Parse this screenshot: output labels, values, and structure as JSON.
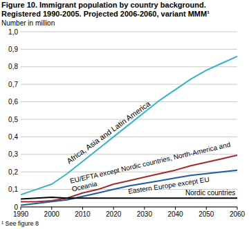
{
  "chart_data": {
    "type": "line",
    "title": "Figure 10. Immigrant population by country background.",
    "subtitle": "Registered 1990-2005. Projected 2006-2060, variant MMM¹",
    "y_label": "Number in million",
    "annotations": [
      "¹ See figure 8"
    ],
    "x": [
      1990,
      1995,
      2000,
      2005,
      2010,
      2015,
      2020,
      2025,
      2030,
      2035,
      2040,
      2045,
      2050,
      2055,
      2060
    ],
    "series": [
      {
        "name": "Africa, Asia and Latin America",
        "color": "#35b4c4",
        "values": [
          0.07,
          0.1,
          0.13,
          0.19,
          0.26,
          0.33,
          0.4,
          0.47,
          0.54,
          0.61,
          0.67,
          0.73,
          0.78,
          0.82,
          0.86
        ]
      },
      {
        "name": "EU/EFTA except Nordic countries, North-America and Oceania",
        "color": "#a3282b",
        "values": [
          0.03,
          0.03,
          0.035,
          0.05,
          0.08,
          0.1,
          0.13,
          0.15,
          0.17,
          0.19,
          0.21,
          0.235,
          0.255,
          0.275,
          0.295
        ]
      },
      {
        "name": "Eastern Europe except EU",
        "color": "#1f5aa6",
        "values": [
          0.01,
          0.02,
          0.03,
          0.04,
          0.06,
          0.08,
          0.1,
          0.12,
          0.135,
          0.15,
          0.165,
          0.18,
          0.19,
          0.2,
          0.21
        ]
      },
      {
        "name": "Nordic countries",
        "color": "#000000",
        "values": [
          0.045,
          0.05,
          0.055,
          0.05,
          0.05,
          0.05,
          0.05,
          0.05,
          0.05,
          0.05,
          0.05,
          0.05,
          0.05,
          0.05,
          0.05
        ]
      }
    ],
    "xlim": [
      1990,
      2060
    ],
    "xticks": [
      1990,
      2000,
      2010,
      2020,
      2030,
      2040,
      2050,
      2060
    ],
    "ylim": [
      0,
      1.0
    ],
    "yticks": [
      0,
      {
        "value": 0.1,
        "label": "0,1"
      },
      {
        "value": 0.2,
        "label": "0,2"
      },
      {
        "value": 0.3,
        "label": "0,3"
      },
      {
        "value": 0.4,
        "label": "0,4"
      },
      {
        "value": 0.5,
        "label": "0,5"
      },
      {
        "value": 0.6,
        "label": "0,6"
      },
      {
        "value": 0.7,
        "label": "0,7"
      },
      {
        "value": 0.8,
        "label": "0,8"
      },
      {
        "value": 0.9,
        "label": "0,9"
      },
      {
        "value": 1.0,
        "label": "1,0"
      }
    ],
    "grid": true
  }
}
